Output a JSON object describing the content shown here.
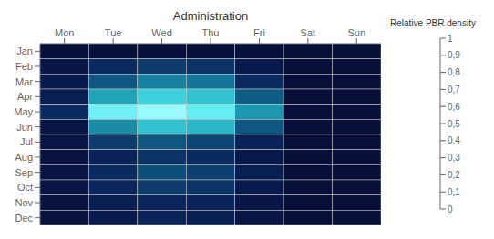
{
  "chart_data": {
    "type": "heatmap",
    "title": "Administration",
    "columns": [
      "Mon",
      "Tue",
      "Wed",
      "Thu",
      "Fri",
      "Sat",
      "Sun"
    ],
    "rows": [
      "Jan",
      "Feb",
      "Mar",
      "Apr",
      "May",
      "Jun",
      "Jul",
      "Aug",
      "Sep",
      "Oct",
      "Nov",
      "Dec"
    ],
    "values": [
      [
        0.04,
        0.04,
        0.04,
        0.04,
        0.04,
        0.02,
        0.02
      ],
      [
        0.1,
        0.22,
        0.28,
        0.25,
        0.12,
        0.02,
        0.02
      ],
      [
        0.12,
        0.38,
        0.52,
        0.48,
        0.22,
        0.02,
        0.02
      ],
      [
        0.15,
        0.62,
        0.78,
        0.72,
        0.4,
        0.02,
        0.02
      ],
      [
        0.22,
        0.92,
        1.0,
        0.9,
        0.58,
        0.02,
        0.02
      ],
      [
        0.1,
        0.55,
        0.72,
        0.68,
        0.38,
        0.02,
        0.02
      ],
      [
        0.08,
        0.28,
        0.38,
        0.32,
        0.18,
        0.02,
        0.02
      ],
      [
        0.06,
        0.18,
        0.25,
        0.22,
        0.12,
        0.02,
        0.02
      ],
      [
        0.08,
        0.22,
        0.35,
        0.3,
        0.15,
        0.02,
        0.02
      ],
      [
        0.08,
        0.2,
        0.28,
        0.25,
        0.12,
        0.02,
        0.02
      ],
      [
        0.06,
        0.15,
        0.2,
        0.18,
        0.1,
        0.02,
        0.02
      ],
      [
        0.05,
        0.12,
        0.18,
        0.15,
        0.08,
        0.02,
        0.02
      ]
    ],
    "colorbar": {
      "label": "Relative PBR density",
      "lim": [
        0,
        1
      ],
      "ticks": [
        0,
        {
          "value": 0.1,
          "label": "0,1"
        },
        {
          "value": 0.2,
          "label": "0,2"
        },
        {
          "value": 0.3,
          "label": "0,3"
        },
        {
          "value": 0.4,
          "label": "0,4"
        },
        {
          "value": 0.5,
          "label": "0,5"
        },
        {
          "value": 0.6,
          "label": "0,6"
        },
        {
          "value": 0.7,
          "label": "0,7"
        },
        {
          "value": 0.8,
          "label": "0,8"
        },
        {
          "value": 0.9,
          "label": "0,9"
        },
        1
      ]
    },
    "colors": [
      "#070c33",
      "#081747",
      "#0a265c",
      "#0d4070",
      "#0f5c85",
      "#147a99",
      "#1f9eb3",
      "#2ebdcc",
      "#40d6e0",
      "#66edf2",
      "#99faff"
    ],
    "grid": true
  }
}
